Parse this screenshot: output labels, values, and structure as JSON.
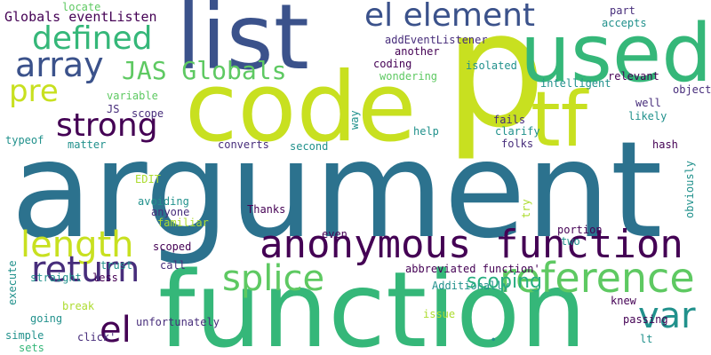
{
  "words": [
    {
      "key": "argument",
      "text": "argument"
    },
    {
      "key": "function",
      "text": "function"
    },
    {
      "key": "code",
      "text": "code"
    },
    {
      "key": "p",
      "text": "p"
    },
    {
      "key": "list",
      "text": "list"
    },
    {
      "key": "used",
      "text": "used"
    },
    {
      "key": "tf",
      "text": "tf"
    },
    {
      "key": "anonymous_function",
      "text": "anonymous function"
    },
    {
      "key": "el_element",
      "text": "el element"
    },
    {
      "key": "reference",
      "text": "reference"
    },
    {
      "key": "array",
      "text": "array"
    },
    {
      "key": "defined",
      "text": "defined"
    },
    {
      "key": "jas_globals",
      "text": "JAS Globals"
    },
    {
      "key": "pre",
      "text": "pre"
    },
    {
      "key": "strong",
      "text": "strong"
    },
    {
      "key": "length",
      "text": "length"
    },
    {
      "key": "return",
      "text": "return"
    },
    {
      "key": "splice",
      "text": "splice"
    },
    {
      "key": "var",
      "text": "var"
    },
    {
      "key": "el",
      "text": "el"
    },
    {
      "key": "globals_eventlisten",
      "text": "Globals eventListen"
    },
    {
      "key": "locate",
      "text": "locate"
    },
    {
      "key": "variable",
      "text": "variable"
    },
    {
      "key": "js",
      "text": "JS"
    },
    {
      "key": "scope",
      "text": "scope"
    },
    {
      "key": "typeof",
      "text": "typeof"
    },
    {
      "key": "matter",
      "text": "matter"
    },
    {
      "key": "converts",
      "text": "converts"
    },
    {
      "key": "second",
      "text": "second"
    },
    {
      "key": "addeventlistener",
      "text": "addEventListener"
    },
    {
      "key": "another",
      "text": "another"
    },
    {
      "key": "coding",
      "text": "coding"
    },
    {
      "key": "wondering",
      "text": "wondering"
    },
    {
      "key": "isolated",
      "text": "isolated"
    },
    {
      "key": "part",
      "text": "part"
    },
    {
      "key": "accepts",
      "text": "accepts"
    },
    {
      "key": "relevant",
      "text": "relevant"
    },
    {
      "key": "intelligent",
      "text": "intelligent"
    },
    {
      "key": "object",
      "text": "object"
    },
    {
      "key": "well",
      "text": "well"
    },
    {
      "key": "likely",
      "text": "likely"
    },
    {
      "key": "fails",
      "text": "fails"
    },
    {
      "key": "clarify",
      "text": "clarify"
    },
    {
      "key": "help",
      "text": "help"
    },
    {
      "key": "folks",
      "text": "folks"
    },
    {
      "key": "hash",
      "text": "hash"
    },
    {
      "key": "edit",
      "text": "EDIT"
    },
    {
      "key": "avoiding",
      "text": "avoiding"
    },
    {
      "key": "anyone",
      "text": "anyone"
    },
    {
      "key": "familiar",
      "text": "familiar"
    },
    {
      "key": "thanks",
      "text": "Thanks"
    },
    {
      "key": "portion",
      "text": "portion"
    },
    {
      "key": "two",
      "text": "two"
    },
    {
      "key": "scoped",
      "text": "scoped"
    },
    {
      "key": "even",
      "text": "even"
    },
    {
      "key": "trust",
      "text": "trust"
    },
    {
      "key": "call",
      "text": "call"
    },
    {
      "key": "abbreviated_function",
      "text": "abbreviated function'"
    },
    {
      "key": "straight",
      "text": "straight"
    },
    {
      "key": "less",
      "text": "less"
    },
    {
      "key": "additionally",
      "text": "Additionally"
    },
    {
      "key": "knew",
      "text": "knew"
    },
    {
      "key": "break",
      "text": "break"
    },
    {
      "key": "going",
      "text": "going"
    },
    {
      "key": "issue",
      "text": "issue"
    },
    {
      "key": "passing",
      "text": "passing"
    },
    {
      "key": "unfortunately",
      "text": "unfortunately"
    },
    {
      "key": "simple",
      "text": "simple"
    },
    {
      "key": "click",
      "text": "click'"
    },
    {
      "key": "lt",
      "text": "lt"
    },
    {
      "key": "sets",
      "text": "sets"
    },
    {
      "key": "scoping",
      "text": "scoping"
    },
    {
      "key": "way",
      "text": "way"
    },
    {
      "key": "try",
      "text": "try"
    },
    {
      "key": "obviously",
      "text": "obviously"
    },
    {
      "key": "execute",
      "text": "execute"
    },
    {
      "key": "dot",
      "text": "•"
    }
  ]
}
